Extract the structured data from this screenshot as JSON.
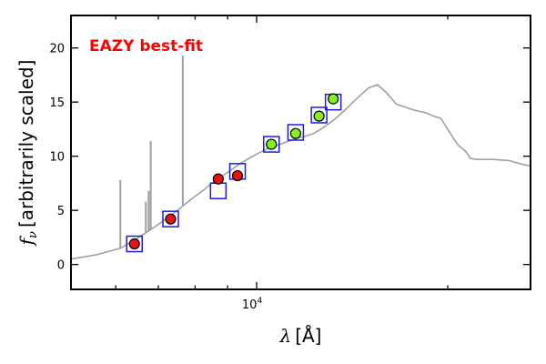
{
  "chart_data": {
    "type": "scatter",
    "title": "",
    "xlabel_symbol": "λ",
    "xlabel_unit": "[Å]",
    "ylabel_symbol": "f",
    "ylabel_subscript": "ν",
    "ylabel_text": "[arbitrarily scaled]",
    "x_scale": "log",
    "xlim": [
      5100,
      27000
    ],
    "ylim": [
      -2.3,
      23
    ],
    "y_ticks": [
      0,
      5,
      10,
      15,
      20
    ],
    "x_tick_labels": [
      {
        "value": 10000,
        "base": "10",
        "exp": "4"
      }
    ],
    "grid": false,
    "annotation": {
      "text": "EAZY best-fit",
      "color": "#ff0000"
    },
    "colors": {
      "template": "#a0a0a0",
      "box": "#1a1aee",
      "red_points": "#ee1111",
      "green_points": "#88ee22"
    },
    "template_spectrum": {
      "x": [
        5100,
        5600,
        6100,
        6400,
        6800,
        7200,
        7500,
        7800,
        8000,
        8300,
        8500,
        9000,
        9400,
        10000,
        10500,
        11000,
        11500,
        12000,
        12300,
        12700,
        13200,
        13800,
        14300,
        15000,
        15500,
        16000,
        16600,
        17000,
        17600,
        18500,
        19000,
        19500,
        20500,
        20800,
        21300,
        21500,
        21700,
        22200,
        23500,
        25000,
        26000,
        27000
      ],
      "y": [
        0.5,
        0.9,
        1.5,
        2.2,
        3.2,
        4.2,
        5.0,
        5.8,
        6.3,
        7.0,
        7.5,
        8.5,
        9.3,
        10.2,
        10.8,
        11.2,
        11.6,
        11.9,
        12.1,
        12.6,
        13.3,
        14.3,
        15.2,
        16.3,
        16.6,
        15.9,
        14.8,
        14.6,
        14.3,
        14.0,
        13.7,
        13.5,
        11.5,
        11.0,
        10.5,
        10.2,
        9.8,
        9.7,
        9.7,
        9.6,
        9.3,
        9.1
      ]
    },
    "emission_lines": [
      {
        "x": 6100,
        "peak": 7.8
      },
      {
        "x": 6690,
        "peak": 5.8
      },
      {
        "x": 6760,
        "peak": 6.8
      },
      {
        "x": 6810,
        "peak": 11.4
      },
      {
        "x": 7650,
        "peak": 19.3
      }
    ],
    "series": [
      {
        "marker": "square",
        "points": [
          [
            6420,
            1.9
          ],
          [
            7320,
            4.2
          ],
          [
            8700,
            6.8
          ],
          [
            9330,
            8.6
          ],
          [
            10550,
            11.1
          ],
          [
            11520,
            12.2
          ],
          [
            12540,
            13.8
          ],
          [
            13200,
            15.0
          ]
        ]
      },
      {
        "marker": "circle",
        "color_key": "red_points",
        "points": [
          [
            6420,
            1.9
          ],
          [
            7320,
            4.2
          ],
          [
            8700,
            7.9
          ],
          [
            9330,
            8.2
          ]
        ]
      },
      {
        "marker": "circle",
        "color_key": "green_points",
        "points": [
          [
            10550,
            11.1
          ],
          [
            11520,
            12.1
          ],
          [
            12540,
            13.7
          ],
          [
            13200,
            15.3
          ]
        ]
      }
    ]
  }
}
